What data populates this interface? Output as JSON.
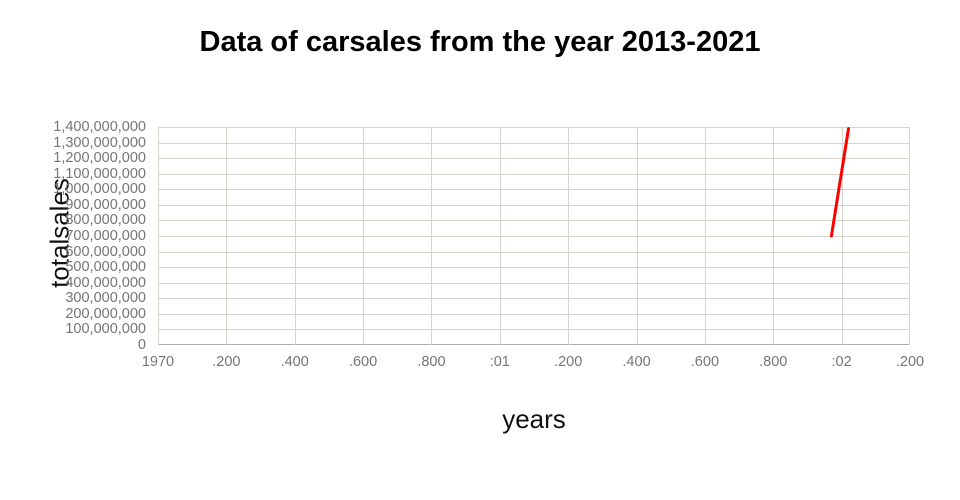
{
  "page": {
    "background": "#ffffff"
  },
  "chart_data": {
    "type": "line",
    "title": "Data of carsales from the year 2013-2021",
    "xlabel": "years",
    "ylabel": "totalsales",
    "grid": true,
    "legend": "none",
    "x_axis": {
      "tick_labels": [
        "1970",
        ".200",
        ".400",
        ".600",
        ".800",
        ":01",
        ".200",
        ".400",
        ".600",
        ".800",
        ":02",
        ".200"
      ],
      "range": [
        0,
        2200
      ],
      "tick_step": 200
    },
    "y_axis": {
      "tick_labels_top_to_bottom": [
        "1,400,000,000",
        "1,300,000,000",
        "1,200,000,000",
        "1,100,000,000",
        "1,000,000,000",
        "900,000,000",
        "800,000,000",
        "700,000,000",
        "600,000,000",
        "500,000,000",
        "400,000,000",
        "300,000,000",
        "200,000,000",
        "100,000,000",
        "0"
      ],
      "range": [
        0,
        1400000000
      ],
      "tick_step": 100000000
    },
    "series": [
      {
        "name": "totalsales",
        "color": "#ff0000",
        "stroke_width": 3,
        "points": [
          {
            "x": 1970,
            "y": 700000000
          },
          {
            "x": 2020,
            "y": 1390000000
          }
        ]
      }
    ],
    "colors": {
      "grid": "#d7d4ce",
      "axis_line": "#b3b0ab",
      "tick_text": "#757575",
      "title_text": "#000000",
      "axis_title_text": "#111111"
    }
  }
}
